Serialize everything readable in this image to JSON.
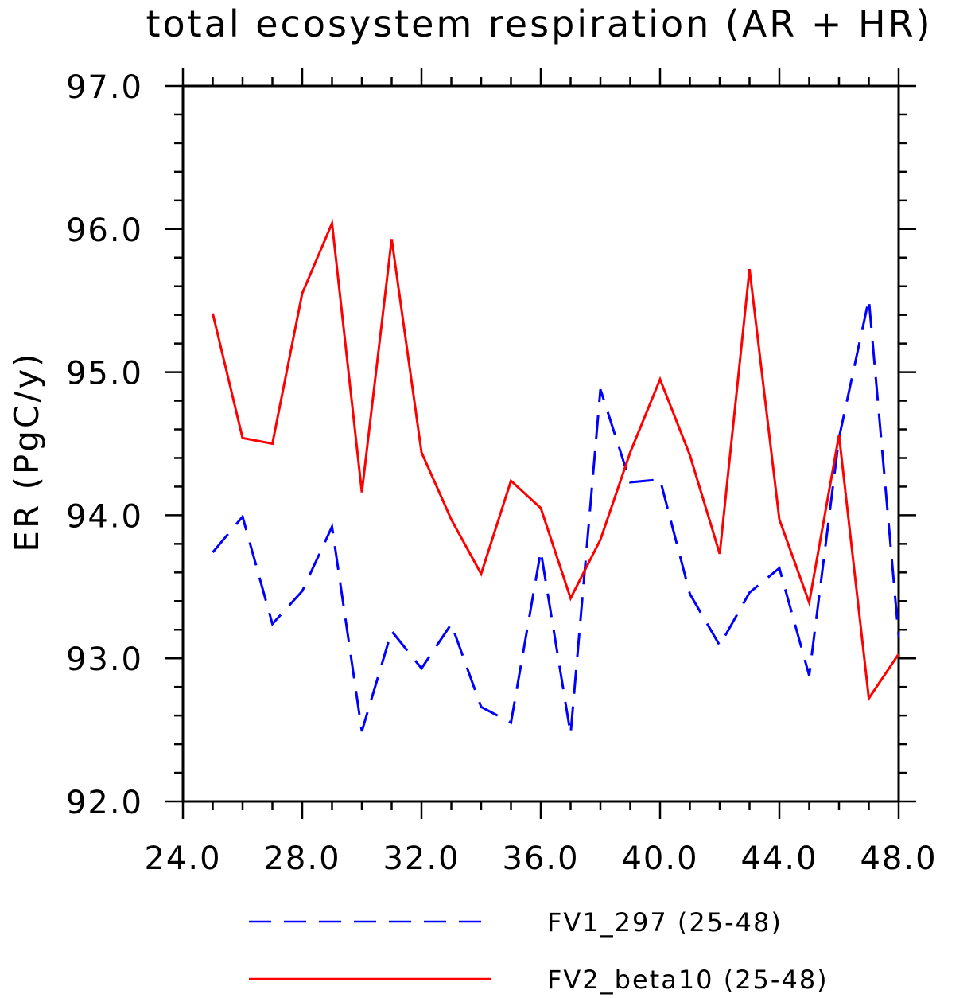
{
  "chart_data": {
    "type": "line",
    "title": "total ecosystem respiration (AR + HR)",
    "xlabel": "",
    "ylabel": "ER (PgC/y)",
    "xlim": [
      24.0,
      48.0
    ],
    "ylim": [
      92.0,
      97.0
    ],
    "xticks": [
      24.0,
      28.0,
      32.0,
      36.0,
      40.0,
      44.0,
      48.0
    ],
    "yticks": [
      92.0,
      93.0,
      94.0,
      95.0,
      96.0,
      97.0
    ],
    "xtick_labels": [
      "24.0",
      "28.0",
      "32.0",
      "36.0",
      "40.0",
      "44.0",
      "48.0"
    ],
    "ytick_labels": [
      "92.0",
      "93.0",
      "94.0",
      "95.0",
      "96.0",
      "97.0"
    ],
    "grid": false,
    "legend_position": "bottom",
    "x": [
      25,
      26,
      27,
      28,
      29,
      30,
      31,
      32,
      33,
      34,
      35,
      36,
      37,
      38,
      39,
      40,
      41,
      42,
      43,
      44,
      45,
      46,
      47,
      48
    ],
    "series": [
      {
        "name": "FV1_297 (25-48)",
        "color": "#0000ff",
        "dash": "dashed",
        "values": [
          93.74,
          93.99,
          93.24,
          93.47,
          93.92,
          92.49,
          93.19,
          92.93,
          93.24,
          92.66,
          92.55,
          93.75,
          92.47,
          94.88,
          94.23,
          94.25,
          93.45,
          93.09,
          93.46,
          93.63,
          92.88,
          94.54,
          95.51,
          93.15
        ]
      },
      {
        "name": "FV2_beta10 (25-48)",
        "color": "#ff0000",
        "dash": "solid",
        "values": [
          95.41,
          94.54,
          94.5,
          95.55,
          96.04,
          94.16,
          95.93,
          94.44,
          93.97,
          93.59,
          94.24,
          94.05,
          93.42,
          93.83,
          94.44,
          94.95,
          94.42,
          93.73,
          95.72,
          93.97,
          93.39,
          94.56,
          92.72,
          93.03
        ]
      }
    ]
  }
}
